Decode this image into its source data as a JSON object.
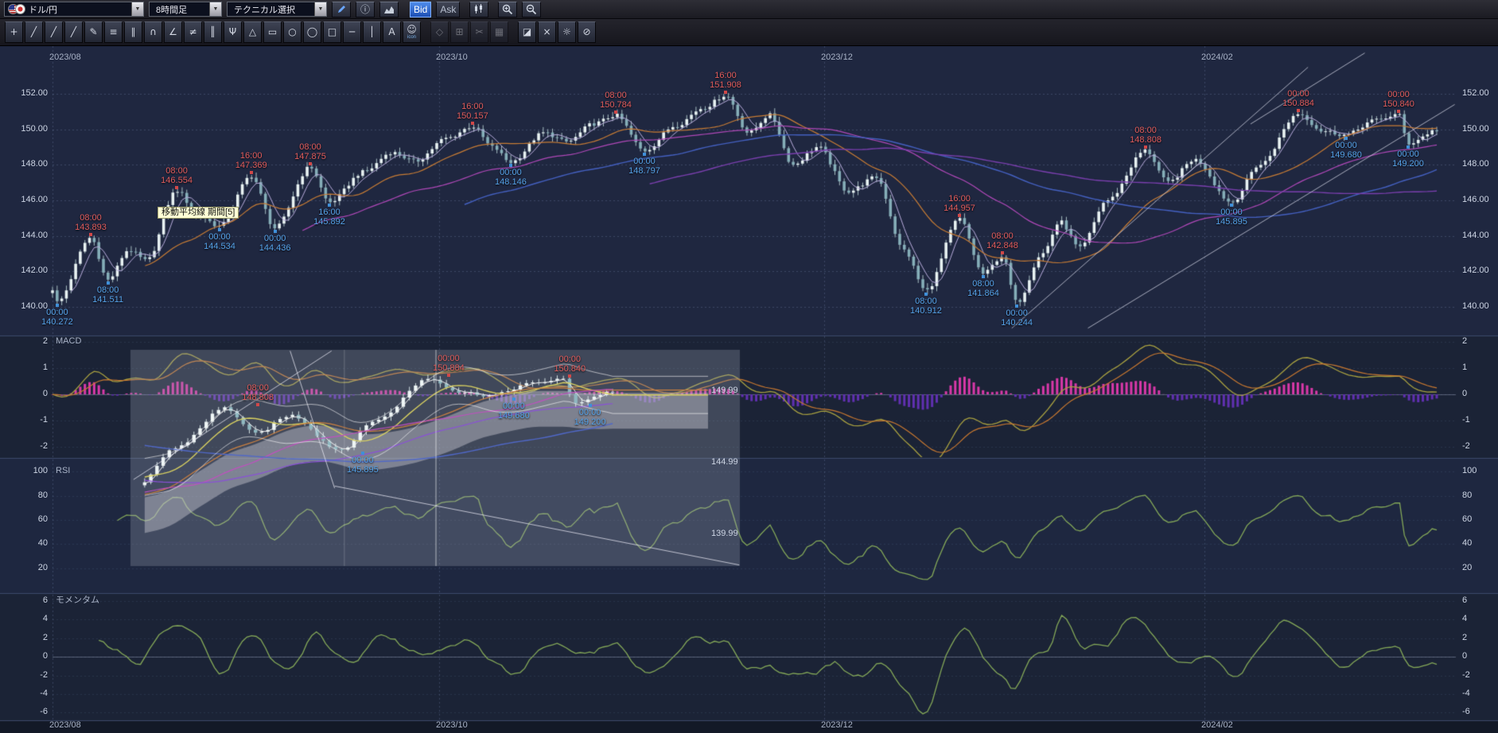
{
  "toolbar": {
    "pair": "ドル/円",
    "timeframe": "8時間足",
    "technical": "テクニカル選択",
    "bid": "Bid",
    "ask": "Ask"
  },
  "toolbar2": {
    "tools": [
      {
        "name": "tool-crosshair",
        "glyph": "+"
      },
      {
        "name": "tool-trendline",
        "glyph": "╱"
      },
      {
        "name": "tool-extended-line",
        "glyph": "╱"
      },
      {
        "name": "tool-ray-line",
        "glyph": "╱"
      },
      {
        "name": "tool-freehand-pencil",
        "glyph": "✎"
      },
      {
        "name": "tool-horizontal-lines",
        "glyph": "≡"
      },
      {
        "name": "tool-parallel-lines",
        "glyph": "∥"
      },
      {
        "name": "tool-fibonacci-arc",
        "glyph": "∩"
      },
      {
        "name": "tool-gann-fan",
        "glyph": "∠"
      },
      {
        "name": "tool-fibonacci-retracement",
        "glyph": "≠"
      },
      {
        "name": "tool-vertical-lines",
        "glyph": "║"
      },
      {
        "name": "tool-pitchfork",
        "glyph": "Ψ"
      },
      {
        "name": "tool-triangle",
        "glyph": "△"
      },
      {
        "name": "tool-rectangle",
        "glyph": "▭"
      },
      {
        "name": "tool-circle",
        "glyph": "○"
      },
      {
        "name": "tool-ellipse",
        "glyph": "◯"
      },
      {
        "name": "tool-box",
        "glyph": "□"
      },
      {
        "name": "tool-horizontal-line",
        "glyph": "─"
      },
      {
        "name": "tool-vertical-line",
        "glyph": "│"
      },
      {
        "name": "tool-text",
        "glyph": "A"
      },
      {
        "name": "tool-icon-stamp",
        "glyph": "☺",
        "caption": "icon"
      },
      {
        "name": "tool-select",
        "glyph": "◇",
        "disabled": true,
        "gap": true
      },
      {
        "name": "tool-copy",
        "glyph": "⊞",
        "disabled": true
      },
      {
        "name": "tool-cut",
        "glyph": "✂",
        "disabled": true
      },
      {
        "name": "tool-paste",
        "glyph": "▦",
        "disabled": true
      },
      {
        "name": "tool-eraser",
        "glyph": "◪",
        "gap": true
      },
      {
        "name": "tool-clear-all",
        "glyph": "×"
      },
      {
        "name": "tool-settings",
        "glyph": "☼"
      },
      {
        "name": "tool-prohibit",
        "glyph": "⊘"
      }
    ]
  },
  "tooltip": {
    "text": "移動平均線 期間[5]"
  },
  "colors": {
    "background": "#0e1220",
    "panel_main": "#1f2740",
    "panel_alt": "#1b2336",
    "grid": "#7890b4",
    "candle_up": "#e8f2f2",
    "candle_down": "#85aeb8",
    "ma_fast": "#b8acdc",
    "ma_mid": "#c87c34",
    "ma_slow": "#b048b8",
    "ma_long": "#4460c0",
    "ma_longest": "#7a3fae",
    "macd_pos": "#d838a8",
    "macd_neg": "#6030b0",
    "macd_line": "#a8a040",
    "macd_signal": "#c87830",
    "oscillator": "#84a858",
    "annotation_high": "#e05c5c",
    "annotation_low": "#55a2e8",
    "trendline": "#d7dae8",
    "tooltip_bg": "#ffffd6"
  },
  "chart_data": {
    "type": "candlestick",
    "symbol": "ドル/円",
    "interval": "8時間足",
    "price_axis": {
      "min": 140,
      "max": 152,
      "ticks": [
        "152.00",
        "150.00",
        "148.00",
        "146.00",
        "144.00",
        "142.00",
        "140.00"
      ]
    },
    "time_axis": {
      "dates": [
        "2023/08",
        "2023/10",
        "2023/12",
        "2024/02"
      ],
      "fractions": [
        0.0,
        0.2793,
        0.5575,
        0.8322
      ]
    },
    "num_candles": 300,
    "series_keypoints": [
      [
        0.0,
        141.0
      ],
      [
        0.0034,
        140.272
      ],
      [
        0.0276,
        143.893
      ],
      [
        0.04,
        141.511
      ],
      [
        0.055,
        143.2
      ],
      [
        0.068,
        142.6
      ],
      [
        0.0897,
        146.554
      ],
      [
        0.105,
        145.2
      ],
      [
        0.1207,
        144.534
      ],
      [
        0.1435,
        147.369
      ],
      [
        0.1607,
        144.436
      ],
      [
        0.1862,
        147.875
      ],
      [
        0.2,
        145.892
      ],
      [
        0.225,
        147.6
      ],
      [
        0.245,
        148.7
      ],
      [
        0.262,
        148.2
      ],
      [
        0.285,
        149.5
      ],
      [
        0.3034,
        150.157
      ],
      [
        0.318,
        149.0
      ],
      [
        0.331,
        148.146
      ],
      [
        0.355,
        149.8
      ],
      [
        0.372,
        149.3
      ],
      [
        0.3905,
        150.3
      ],
      [
        0.4069,
        150.784
      ],
      [
        0.4276,
        148.797
      ],
      [
        0.45,
        150.2
      ],
      [
        0.47,
        151.2
      ],
      [
        0.4862,
        151.908
      ],
      [
        0.503,
        149.8
      ],
      [
        0.518,
        150.8
      ],
      [
        0.535,
        148.0
      ],
      [
        0.553,
        149.0
      ],
      [
        0.575,
        146.5
      ],
      [
        0.595,
        147.3
      ],
      [
        0.615,
        143.2
      ],
      [
        0.631,
        140.912
      ],
      [
        0.6552,
        144.957
      ],
      [
        0.6724,
        141.864
      ],
      [
        0.6862,
        142.848
      ],
      [
        0.6966,
        140.244
      ],
      [
        0.715,
        143.0
      ],
      [
        0.728,
        144.8
      ],
      [
        0.742,
        143.3
      ],
      [
        0.762,
        146.0
      ],
      [
        0.7897,
        148.808
      ],
      [
        0.806,
        147.0
      ],
      [
        0.825,
        148.3
      ],
      [
        0.8517,
        145.895
      ],
      [
        0.872,
        148.0
      ],
      [
        0.9,
        150.884
      ],
      [
        0.918,
        149.9
      ],
      [
        0.9345,
        149.68
      ],
      [
        0.955,
        150.5
      ],
      [
        0.9724,
        150.84
      ],
      [
        0.9793,
        149.2
      ],
      [
        1.0,
        149.95
      ]
    ],
    "annotations": [
      {
        "time": "00:00",
        "price": "140.272",
        "side": "low",
        "xf": 0.0034
      },
      {
        "time": "08:00",
        "price": "143.893",
        "side": "high",
        "xf": 0.0276
      },
      {
        "time": "08:00",
        "price": "141.511",
        "side": "low",
        "xf": 0.04
      },
      {
        "time": "08:00",
        "price": "146.554",
        "side": "high",
        "xf": 0.0897
      },
      {
        "time": "00:00",
        "price": "144.534",
        "side": "low",
        "xf": 0.1207
      },
      {
        "time": "16:00",
        "price": "147.369",
        "side": "high",
        "xf": 0.1435
      },
      {
        "time": "00:00",
        "price": "144.436",
        "side": "low",
        "xf": 0.1607
      },
      {
        "time": "08:00",
        "price": "147.875",
        "side": "high",
        "xf": 0.1862
      },
      {
        "time": "16:00",
        "price": "145.892",
        "side": "low",
        "xf": 0.2
      },
      {
        "time": "16:00",
        "price": "150.157",
        "side": "high",
        "xf": 0.3034
      },
      {
        "time": "00:00",
        "price": "148.146",
        "side": "low",
        "xf": 0.331
      },
      {
        "time": "08:00",
        "price": "150.784",
        "side": "high",
        "xf": 0.4069
      },
      {
        "time": "00:00",
        "price": "148.797",
        "side": "low",
        "xf": 0.4276
      },
      {
        "time": "16:00",
        "price": "151.908",
        "side": "high",
        "xf": 0.4862
      },
      {
        "time": "08:00",
        "price": "140.912",
        "side": "low",
        "xf": 0.631
      },
      {
        "time": "16:00",
        "price": "144.957",
        "side": "high",
        "xf": 0.6552
      },
      {
        "time": "08:00",
        "price": "141.864",
        "side": "low",
        "xf": 0.6724
      },
      {
        "time": "08:00",
        "price": "142.848",
        "side": "high",
        "xf": 0.6862
      },
      {
        "time": "00:00",
        "price": "140.244",
        "side": "low",
        "xf": 0.6966
      },
      {
        "time": "08:00",
        "price": "148.808",
        "side": "high",
        "xf": 0.7897
      },
      {
        "time": "00:00",
        "price": "145.895",
        "side": "low",
        "xf": 0.8517
      },
      {
        "time": "00:00",
        "price": "150.884",
        "side": "high",
        "xf": 0.9
      },
      {
        "time": "00:00",
        "price": "149.680",
        "side": "low",
        "xf": 0.9345
      },
      {
        "time": "00:00",
        "price": "150.840",
        "side": "high",
        "xf": 0.9724
      },
      {
        "time": "00:00",
        "price": "149.200",
        "side": "low",
        "xf": 0.9793
      }
    ],
    "trendlines": [
      {
        "x1f": 0.693,
        "p1": 138.8,
        "x2f": 0.907,
        "p2": 153.5
      },
      {
        "x1f": 0.748,
        "p1": 138.8,
        "x2f": 1.013,
        "p2": 151.4
      },
      {
        "x1f": 0.8655,
        "p1": 150.3,
        "x2f": 0.948,
        "p2": 154.3
      }
    ],
    "indicators": {
      "macd": {
        "label": "MACD",
        "ticks": [
          "2",
          "1",
          "0",
          "-1",
          "-2"
        ],
        "range": [
          -2,
          2
        ]
      },
      "rsi": {
        "label": "RSI",
        "ticks": [
          "100",
          "80",
          "60",
          "40",
          "20"
        ],
        "range": [
          0,
          100
        ]
      },
      "momentum": {
        "label": "モメンタム",
        "ticks": [
          "6",
          "4",
          "2",
          "0",
          "-2",
          "-4",
          "-6"
        ],
        "range": [
          -6,
          6
        ]
      }
    }
  },
  "inset_chart": {
    "right_labels": [
      "149.99",
      "144.99",
      "139.99"
    ],
    "annotations": [
      {
        "time": "08:00",
        "price": "148.808",
        "side": "high",
        "fx": 0.209
      },
      {
        "time": "00:00",
        "price": "145.895",
        "side": "low",
        "fx": 0.381
      },
      {
        "time": "00:00",
        "price": "150.884",
        "side": "high",
        "fx": 0.522
      },
      {
        "time": "00:00",
        "price": "149.680",
        "side": "low",
        "fx": 0.629
      },
      {
        "time": "00:00",
        "price": "150.840",
        "side": "high",
        "fx": 0.721
      },
      {
        "time": "00:00",
        "price": "149.200",
        "side": "low",
        "fx": 0.754
      }
    ]
  }
}
